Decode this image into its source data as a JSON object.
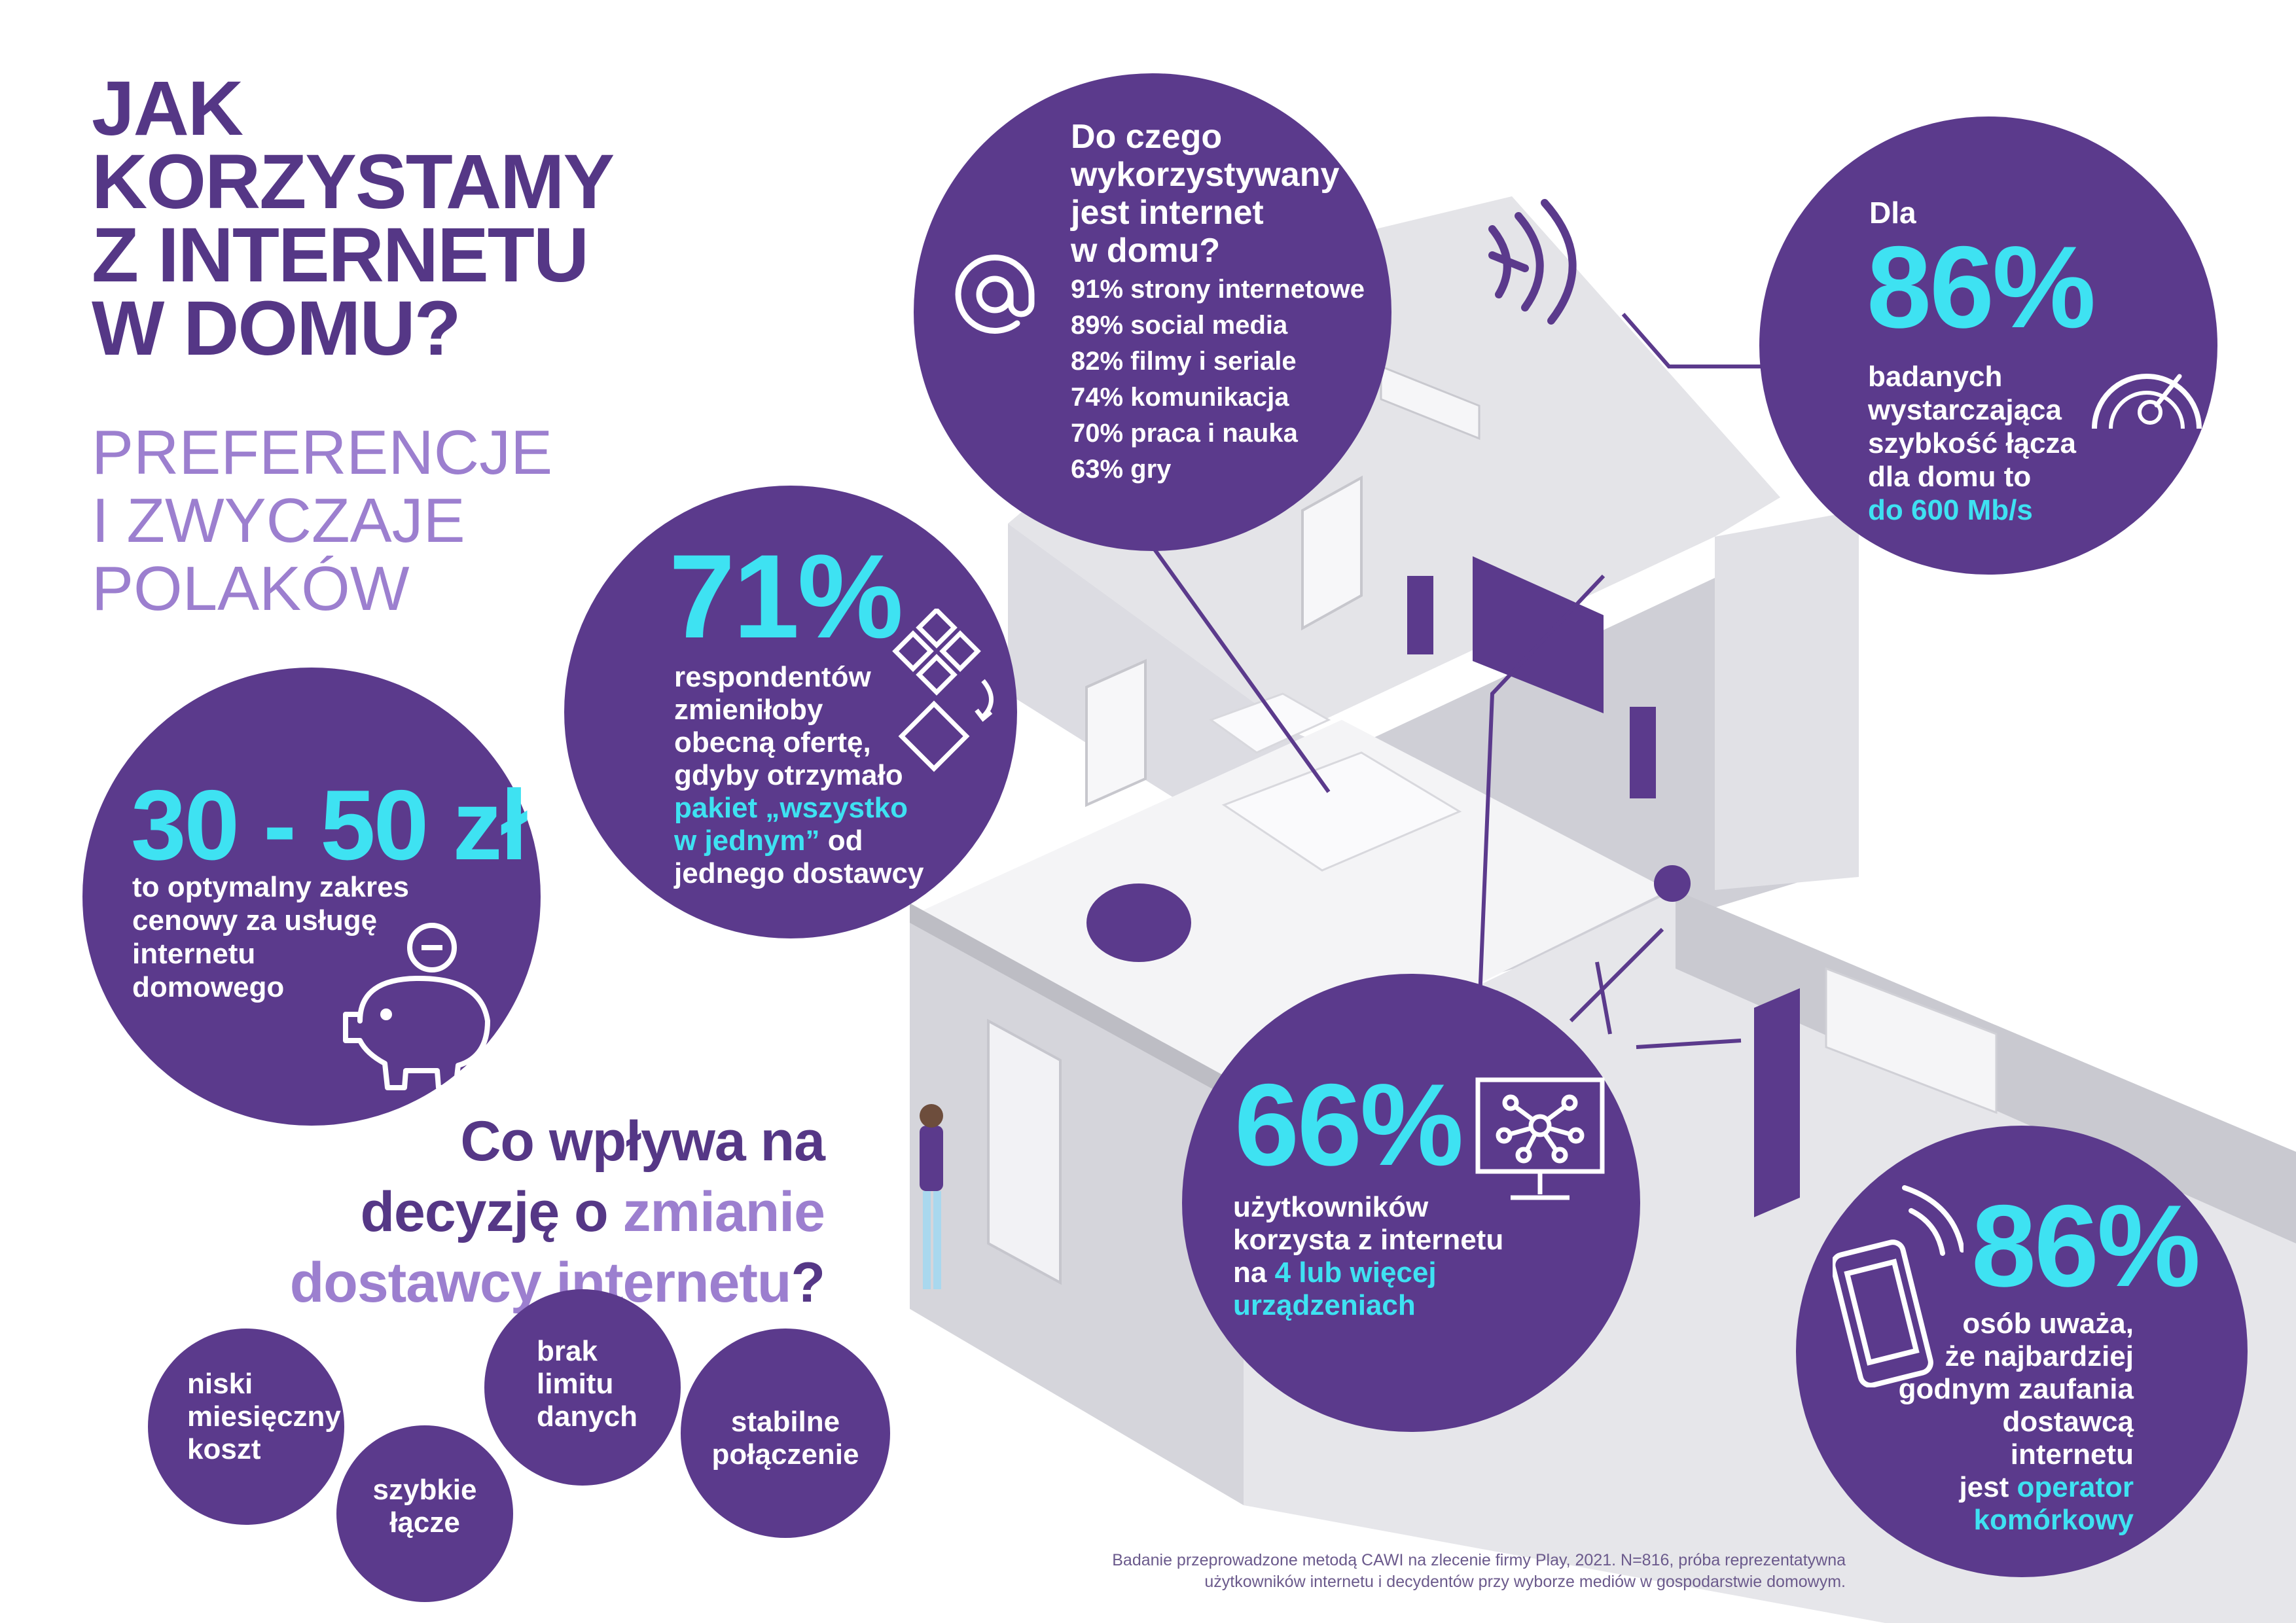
{
  "title_lines": [
    "JAK",
    "KORZYSTAMY",
    "Z INTERNETU",
    "W DOMU?"
  ],
  "subtitle_lines": [
    "PREFERENCJE",
    "I ZWYCZAJE",
    "POLAKÓW"
  ],
  "colors": {
    "purple": "#5b3a8c",
    "lilac": "#9c7fcf",
    "cyan": "#3ee2f2",
    "wall": "#e9e9ec"
  },
  "usage": {
    "title_lines": [
      "Do czego",
      "wykorzystywany",
      "jest internet",
      "w domu?"
    ],
    "items": [
      "91% strony internetowe",
      "89% social media",
      "82% filmy i seriale",
      "74% komunikacja",
      "70% praca i nauka",
      "63% gry"
    ],
    "icon": "at-sign-icon"
  },
  "speed": {
    "prefix": "Dla",
    "value": "86%",
    "lines": [
      "badanych",
      "wystarczająca",
      "szybkość łącza",
      "dla domu to"
    ],
    "highlight": "do 600 Mb/s",
    "icon": "speedometer-icon"
  },
  "offer": {
    "value": "71%",
    "lines": [
      "respondentów",
      "zmieniłoby",
      "obecną ofertę,",
      "gdyby otrzymało"
    ],
    "highlight_lines": [
      "pakiet „wszystko",
      "w jednym”"
    ],
    "highlight_suffix": "od",
    "last_line": "jednego dostawcy",
    "icon": "package-switch-icon"
  },
  "price": {
    "value": "30 - 50 zł",
    "lines": [
      "to optymalny zakres",
      "cenowy za usługę",
      "internetu",
      "domowego"
    ],
    "icon": "piggy-bank-icon"
  },
  "devices": {
    "value": "66%",
    "lines": [
      "użytkowników",
      "korzysta z internetu"
    ],
    "line3_prefix": "na",
    "highlight_lines": [
      "4 lub więcej",
      "urządzeniach"
    ],
    "icon": "monitor-network-icon"
  },
  "trust": {
    "value": "86%",
    "lines": [
      "osób uważa,",
      "że najbardziej",
      "godnym zaufania",
      "dostawcą internetu"
    ],
    "line5_prefix": "jest",
    "highlight_lines": [
      "operator",
      "komórkowy"
    ],
    "icon": "smartphone-signal-icon"
  },
  "decision": {
    "line1": "Co wpływa na",
    "line2_prefix": "decyzję o",
    "line2_highlight": "zmianie",
    "line3_highlight": "dostawcy internetu",
    "line3_suffix": "?"
  },
  "factors": [
    {
      "lines": [
        "niski",
        "miesięczny",
        "koszt"
      ]
    },
    {
      "lines": [
        "szybkie",
        "łącze"
      ]
    },
    {
      "lines": [
        "brak",
        "limitu",
        "danych"
      ]
    },
    {
      "lines": [
        "stabilne",
        "połączenie"
      ]
    }
  ],
  "footnote_lines": [
    "Badanie przeprowadzone metodą CAWI na zlecenie firmy Play, 2021. N=816, próba reprezentatywna",
    "użytkowników internetu i decydentów przy wyborze mediów w gospodarstwie domowym."
  ]
}
